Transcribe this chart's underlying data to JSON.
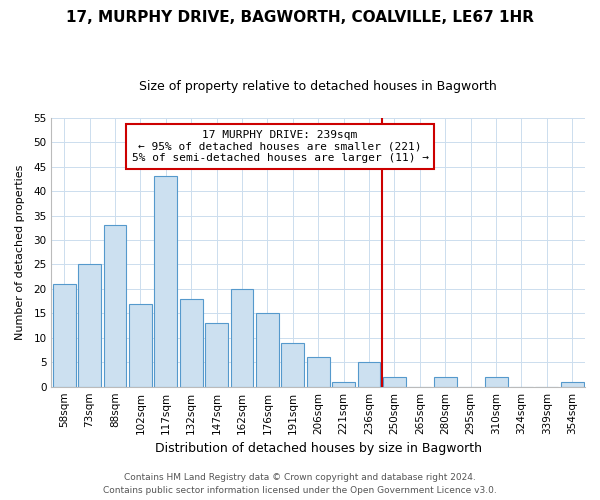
{
  "title": "17, MURPHY DRIVE, BAGWORTH, COALVILLE, LE67 1HR",
  "subtitle": "Size of property relative to detached houses in Bagworth",
  "xlabel": "Distribution of detached houses by size in Bagworth",
  "ylabel": "Number of detached properties",
  "bin_labels": [
    "58sqm",
    "73sqm",
    "88sqm",
    "102sqm",
    "117sqm",
    "132sqm",
    "147sqm",
    "162sqm",
    "176sqm",
    "191sqm",
    "206sqm",
    "221sqm",
    "236sqm",
    "250sqm",
    "265sqm",
    "280sqm",
    "295sqm",
    "310sqm",
    "324sqm",
    "339sqm",
    "354sqm"
  ],
  "bar_heights": [
    21,
    25,
    33,
    17,
    43,
    18,
    13,
    20,
    15,
    9,
    6,
    1,
    5,
    2,
    0,
    2,
    0,
    2,
    0,
    0,
    1
  ],
  "bar_color": "#cce0f0",
  "bar_edge_color": "#5599cc",
  "vline_x": 12.5,
  "vline_color": "#cc0000",
  "annotation_title": "17 MURPHY DRIVE: 239sqm",
  "annotation_line1": "← 95% of detached houses are smaller (221)",
  "annotation_line2": "5% of semi-detached houses are larger (11) →",
  "annotation_box_color": "#ffffff",
  "annotation_box_edge": "#cc0000",
  "ylim": [
    0,
    55
  ],
  "yticks": [
    0,
    5,
    10,
    15,
    20,
    25,
    30,
    35,
    40,
    45,
    50,
    55
  ],
  "footer1": "Contains HM Land Registry data © Crown copyright and database right 2024.",
  "footer2": "Contains public sector information licensed under the Open Government Licence v3.0.",
  "plot_bg_color": "#ffffff",
  "fig_bg_color": "#ffffff",
  "grid_color": "#ccddee",
  "title_fontsize": 11,
  "subtitle_fontsize": 9,
  "ylabel_fontsize": 8,
  "xlabel_fontsize": 9,
  "tick_fontsize": 7.5,
  "footer_fontsize": 6.5,
  "annot_fontsize": 8
}
